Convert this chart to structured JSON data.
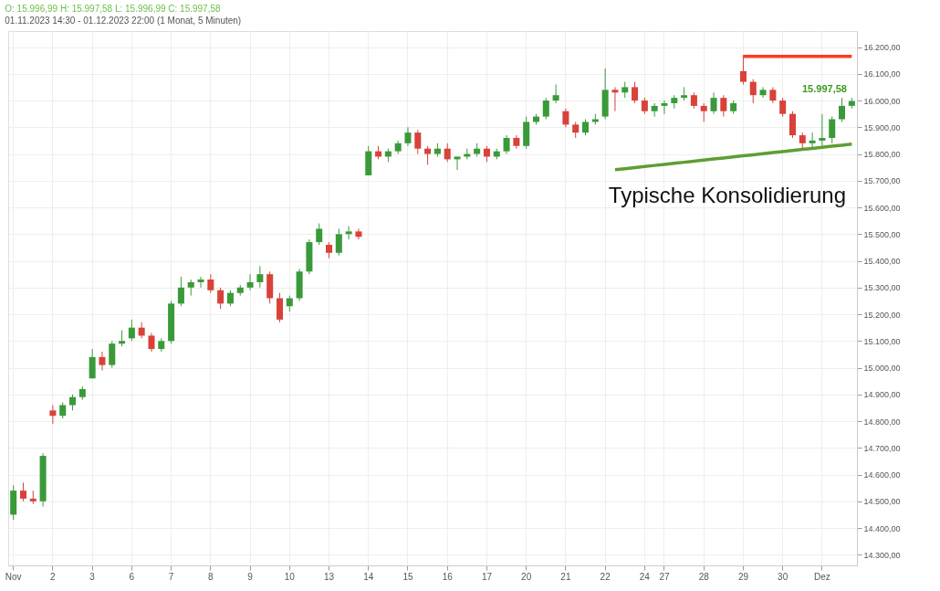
{
  "chart_data": {
    "type": "candlestick",
    "title": "O: 15.996,99  H: 15.997,58  L: 15.996,99  C: 15.997,58",
    "subtitle": "01.11.2023 14:30 - 01.12.2023 22:00   (1 Monat, 5 Minuten)",
    "categories": [
      "Nov",
      null,
      null,
      null,
      "2",
      null,
      null,
      null,
      "3",
      null,
      null,
      null,
      "6",
      null,
      null,
      null,
      "7",
      null,
      null,
      null,
      "8",
      null,
      null,
      null,
      "9",
      null,
      null,
      null,
      "10",
      null,
      null,
      null,
      "13",
      null,
      null,
      null,
      "14",
      null,
      null,
      null,
      "15",
      null,
      null,
      null,
      "16",
      null,
      null,
      null,
      "17",
      null,
      null,
      null,
      "20",
      null,
      null,
      null,
      "21",
      null,
      null,
      null,
      "22",
      null,
      null,
      null,
      "24",
      null,
      "27",
      null,
      null,
      null,
      "28",
      null,
      null,
      null,
      "29",
      null,
      null,
      null,
      "30",
      null,
      null,
      null,
      "Dez",
      null,
      null,
      null
    ],
    "ohlc": [
      [
        14450,
        14560,
        14430,
        14540
      ],
      [
        14540,
        14570,
        14500,
        14510
      ],
      [
        14510,
        14540,
        14490,
        14500
      ],
      [
        14500,
        14680,
        14480,
        14670
      ],
      [
        14840,
        14860,
        14790,
        14820
      ],
      [
        14820,
        14870,
        14810,
        14860
      ],
      [
        14860,
        14900,
        14840,
        14890
      ],
      [
        14890,
        14930,
        14880,
        14920
      ],
      [
        14960,
        15070,
        14960,
        15040
      ],
      [
        15040,
        15060,
        14990,
        15010
      ],
      [
        15010,
        15100,
        15000,
        15090
      ],
      [
        15090,
        15140,
        15080,
        15100
      ],
      [
        15110,
        15180,
        15100,
        15150
      ],
      [
        15150,
        15170,
        15110,
        15120
      ],
      [
        15120,
        15130,
        15060,
        15070
      ],
      [
        15070,
        15110,
        15060,
        15100
      ],
      [
        15100,
        15250,
        15090,
        15240
      ],
      [
        15240,
        15340,
        15230,
        15300
      ],
      [
        15300,
        15330,
        15270,
        15320
      ],
      [
        15320,
        15340,
        15300,
        15330
      ],
      [
        15330,
        15350,
        15280,
        15290
      ],
      [
        15290,
        15300,
        15220,
        15240
      ],
      [
        15240,
        15290,
        15230,
        15280
      ],
      [
        15280,
        15310,
        15270,
        15300
      ],
      [
        15300,
        15350,
        15290,
        15320
      ],
      [
        15320,
        15380,
        15300,
        15350
      ],
      [
        15350,
        15360,
        15240,
        15260
      ],
      [
        15260,
        15280,
        15170,
        15180
      ],
      [
        15230,
        15270,
        15210,
        15260
      ],
      [
        15260,
        15370,
        15250,
        15360
      ],
      [
        15360,
        15480,
        15350,
        15470
      ],
      [
        15470,
        15540,
        15460,
        15520
      ],
      [
        15460,
        15470,
        15410,
        15430
      ],
      [
        15430,
        15520,
        15420,
        15500
      ],
      [
        15500,
        15530,
        15480,
        15510
      ],
      [
        15510,
        15520,
        15480,
        15490
      ],
      [
        15720,
        15830,
        15720,
        15810
      ],
      [
        15810,
        15830,
        15780,
        15790
      ],
      [
        15790,
        15820,
        15770,
        15810
      ],
      [
        15810,
        15850,
        15800,
        15840
      ],
      [
        15840,
        15900,
        15830,
        15880
      ],
      [
        15880,
        15890,
        15800,
        15820
      ],
      [
        15820,
        15830,
        15760,
        15800
      ],
      [
        15800,
        15840,
        15790,
        15820
      ],
      [
        15820,
        15840,
        15770,
        15780
      ],
      [
        15780,
        15790,
        15740,
        15790
      ],
      [
        15790,
        15820,
        15780,
        15800
      ],
      [
        15800,
        15840,
        15790,
        15820
      ],
      [
        15820,
        15830,
        15770,
        15790
      ],
      [
        15790,
        15820,
        15780,
        15810
      ],
      [
        15810,
        15870,
        15800,
        15860
      ],
      [
        15860,
        15870,
        15820,
        15830
      ],
      [
        15830,
        15940,
        15820,
        15920
      ],
      [
        15920,
        15950,
        15910,
        15940
      ],
      [
        15940,
        16010,
        15930,
        16000
      ],
      [
        16000,
        16060,
        15990,
        16020
      ],
      [
        15960,
        15970,
        15900,
        15910
      ],
      [
        15910,
        15920,
        15860,
        15880
      ],
      [
        15880,
        15930,
        15870,
        15920
      ],
      [
        15920,
        15950,
        15910,
        15930
      ],
      [
        15940,
        16120,
        15930,
        16040
      ],
      [
        16040,
        16050,
        15960,
        16030
      ],
      [
        16030,
        16070,
        16010,
        16050
      ],
      [
        16050,
        16070,
        15990,
        16000
      ],
      [
        16000,
        16010,
        15950,
        15960
      ],
      [
        15960,
        15990,
        15940,
        15980
      ],
      [
        15980,
        16000,
        15950,
        15990
      ],
      [
        15990,
        16020,
        15970,
        16010
      ],
      [
        16010,
        16050,
        16000,
        16020
      ],
      [
        16020,
        16030,
        15970,
        15980
      ],
      [
        15980,
        15990,
        15920,
        15960
      ],
      [
        15960,
        16030,
        15950,
        16010
      ],
      [
        16010,
        16020,
        15940,
        15960
      ],
      [
        15960,
        16000,
        15950,
        15990
      ],
      [
        16110,
        16170,
        16060,
        16070
      ],
      [
        16070,
        16080,
        15990,
        16020
      ],
      [
        16020,
        16050,
        16010,
        16040
      ],
      [
        16040,
        16050,
        15990,
        16000
      ],
      [
        16000,
        16010,
        15940,
        15950
      ],
      [
        15950,
        15960,
        15860,
        15870
      ],
      [
        15870,
        15880,
        15820,
        15840
      ],
      [
        15840,
        15880,
        15820,
        15850
      ],
      [
        15850,
        15950,
        15830,
        15860
      ],
      [
        15860,
        15940,
        15840,
        15930
      ],
      [
        15930,
        16010,
        15920,
        15980
      ],
      [
        15980,
        16010,
        15970,
        15998
      ]
    ],
    "series": [
      {
        "type": "line",
        "color": "#ff3b1f",
        "values": [
          null,
          null,
          null,
          null,
          null,
          null,
          null,
          null,
          null,
          null,
          null,
          null,
          null,
          null,
          null,
          null,
          null,
          null,
          null,
          null,
          null,
          null,
          null,
          null,
          null,
          null,
          null,
          null,
          null,
          null,
          null,
          null,
          null,
          null,
          null,
          null,
          null,
          null,
          null,
          null,
          null,
          null,
          null,
          null,
          null,
          null,
          null,
          null,
          null,
          null,
          null,
          null,
          null,
          null,
          null,
          null,
          null,
          null,
          null,
          null,
          null,
          null,
          null,
          null,
          null,
          null,
          null,
          null,
          null,
          null,
          null,
          null,
          null,
          null,
          16165,
          16165,
          16165,
          16165,
          16165,
          16165,
          16165,
          16165,
          16165,
          16165,
          16165,
          16165
        ]
      },
      {
        "type": "line",
        "color": "#5d9e32",
        "values": [
          null,
          null,
          null,
          null,
          null,
          null,
          null,
          null,
          null,
          null,
          null,
          null,
          null,
          null,
          null,
          null,
          null,
          null,
          null,
          null,
          null,
          null,
          null,
          null,
          null,
          null,
          null,
          null,
          null,
          null,
          null,
          null,
          null,
          null,
          null,
          null,
          null,
          null,
          null,
          null,
          null,
          null,
          null,
          null,
          null,
          null,
          null,
          null,
          null,
          null,
          null,
          null,
          null,
          null,
          null,
          null,
          null,
          null,
          null,
          null,
          null,
          15741,
          15745,
          15749,
          15753,
          15757,
          15761,
          15765,
          15769,
          15773,
          15777,
          15781,
          15785,
          15789,
          15793,
          15797,
          15801,
          15805,
          15809,
          15813,
          15817,
          15821,
          15825,
          15829,
          15833,
          15837
        ]
      }
    ],
    "ylim": [
      14260,
      16260
    ],
    "yticks": [
      {
        "value": 14300,
        "label": "14.300,00"
      },
      {
        "value": 14400,
        "label": "14.400,00"
      },
      {
        "value": 14500,
        "label": "14.500,00"
      },
      {
        "value": 14600,
        "label": "14.600,00"
      },
      {
        "value": 14700,
        "label": "14.700,00"
      },
      {
        "value": 14800,
        "label": "14.800,00"
      },
      {
        "value": 14900,
        "label": "14.900,00"
      },
      {
        "value": 15000,
        "label": "15.000,00"
      },
      {
        "value": 15100,
        "label": "15.100,00"
      },
      {
        "value": 15200,
        "label": "15.200,00"
      },
      {
        "value": 15300,
        "label": "15.300,00"
      },
      {
        "value": 15400,
        "label": "15.400,00"
      },
      {
        "value": 15500,
        "label": "15.500,00"
      },
      {
        "value": 15600,
        "label": "15.600,00"
      },
      {
        "value": 15700,
        "label": "15.700,00"
      },
      {
        "value": 15800,
        "label": "15.800,00"
      },
      {
        "value": 15900,
        "label": "15.900,00"
      },
      {
        "value": 16000,
        "label": "16.000,00"
      },
      {
        "value": 16100,
        "label": "16.100,00"
      },
      {
        "value": 16200,
        "label": "16.200,00"
      }
    ],
    "grid": true,
    "annotations": [
      "Typische Konsolidierung",
      "15.997,58"
    ]
  }
}
